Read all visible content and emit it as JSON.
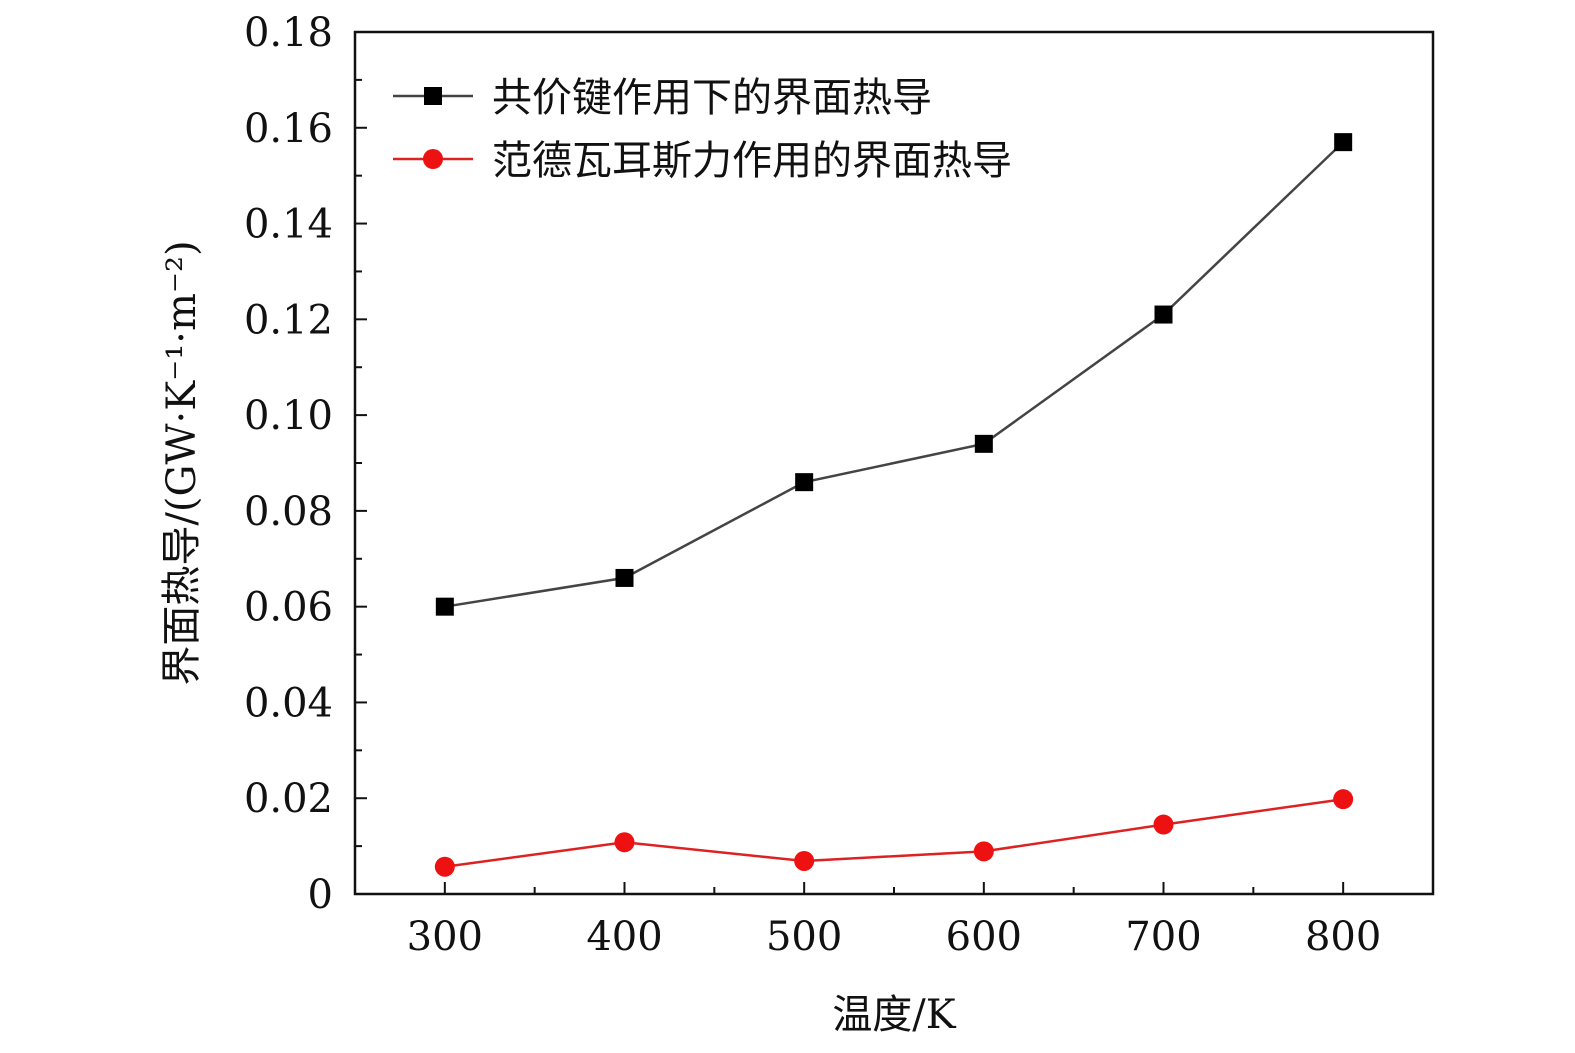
{
  "chart_data": {
    "type": "line",
    "title": "",
    "xlabel": "温度/K",
    "ylabel": "界面热导/(GW·K⁻¹·m⁻²)",
    "x": [
      300,
      400,
      500,
      600,
      700,
      800
    ],
    "xlim": [
      250,
      850
    ],
    "ylim": [
      0,
      0.18
    ],
    "xticks": [
      "300",
      "400",
      "500",
      "600",
      "700",
      "800"
    ],
    "yticks": [
      "0",
      "0.02",
      "0.04",
      "0.06",
      "0.08",
      "0.10",
      "0.12",
      "0.14",
      "0.16",
      "0.18"
    ],
    "grid": false,
    "legend_position": "top-left",
    "series": [
      {
        "name": "共价键作用下的界面热导",
        "marker": "square",
        "color": "#000000",
        "line_color": "#444444",
        "values": [
          0.06,
          0.066,
          0.086,
          0.094,
          0.121,
          0.157
        ]
      },
      {
        "name": "范德瓦耳斯力作用的界面热导",
        "marker": "circle",
        "color": "#ee1111",
        "line_color": "#dd2222",
        "values": [
          0.0057,
          0.0108,
          0.0069,
          0.0089,
          0.0145,
          0.0198
        ]
      }
    ]
  }
}
